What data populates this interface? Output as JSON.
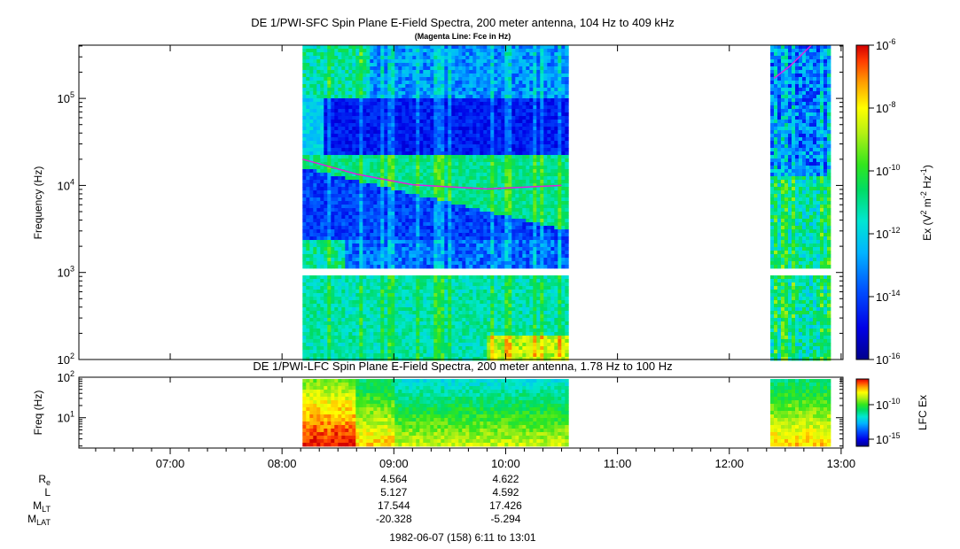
{
  "chart_data": [
    {
      "type": "heatmap",
      "title": "DE 1/PWI-SFC  Spin Plane E-Field Spectra, 200 meter antenna, 104 Hz to 409 kHz",
      "subtitle": "(Magenta Line: Fce in Hz)",
      "ylabel": "Frequency (Hz)",
      "yscale": "log",
      "ylim": [
        100,
        409000
      ],
      "yticks": [
        {
          "base": "10",
          "exp": "2"
        },
        {
          "base": "10",
          "exp": "3"
        },
        {
          "base": "10",
          "exp": "4"
        },
        {
          "base": "10",
          "exp": "5"
        }
      ],
      "xlim": [
        "06:11",
        "13:01"
      ],
      "data_intervals": [
        [
          "08:11",
          "10:32"
        ],
        [
          "12:22",
          "12:53"
        ]
      ],
      "colorbar": {
        "label_parts": [
          "Ex (V",
          "2",
          " m",
          "-2",
          " Hz",
          "-1",
          ")"
        ],
        "scale": "log",
        "range": [
          1e-16,
          1e-06
        ],
        "ticks": [
          {
            "base": "10",
            "exp": "-6"
          },
          {
            "base": "10",
            "exp": "-8"
          },
          {
            "base": "10",
            "exp": "-10"
          },
          {
            "base": "10",
            "exp": "-12"
          },
          {
            "base": "10",
            "exp": "-14"
          },
          {
            "base": "10",
            "exp": "-16"
          }
        ]
      },
      "fce_line": {
        "color": "#e020e0",
        "segments": [
          {
            "x": [
              "08:11",
              "08:40",
              "09:10",
              "09:50",
              "10:30"
            ],
            "y": [
              20000,
              13500,
              10200,
              9100,
              10000
            ]
          },
          {
            "x": [
              "12:24",
              "12:33",
              "12:44"
            ],
            "y": [
              170000,
              240000,
              409000
            ]
          }
        ]
      }
    },
    {
      "type": "heatmap",
      "title": "DE 1/PWI-LFC  Spin Plane E-Field Spectra, 200 meter antenna, 1.78 Hz to 100 Hz",
      "ylabel": "Freq (Hz)",
      "yscale": "log",
      "ylim": [
        1.78,
        100
      ],
      "yticks": [
        {
          "base": "10",
          "exp": "1"
        },
        {
          "base": "10",
          "exp": "2"
        }
      ],
      "data_intervals": [
        [
          "08:11",
          "10:32"
        ],
        [
          "12:22",
          "12:53"
        ]
      ],
      "colorbar": {
        "label": "LFC Ex",
        "scale": "log",
        "ticks": [
          {
            "base": "10",
            "exp": "-10"
          },
          {
            "base": "10",
            "exp": "-15"
          }
        ]
      }
    }
  ],
  "time_axis": {
    "ticks": [
      "07:00",
      "08:00",
      "09:00",
      "10:00",
      "11:00",
      "12:00",
      "13:00"
    ]
  },
  "ephemeris": {
    "rows": [
      {
        "main": "R",
        "sub": "e",
        "values": [
          "4.564",
          "4.622"
        ]
      },
      {
        "main": "L",
        "sub": "",
        "values": [
          "5.127",
          "4.592"
        ]
      },
      {
        "main": "M",
        "sub": "LT",
        "values": [
          "17.544",
          "17.426"
        ]
      },
      {
        "main": "M",
        "sub": "LAT",
        "values": [
          "-20.328",
          "-5.294"
        ]
      }
    ],
    "times": [
      "09:00",
      "10:00"
    ]
  },
  "footer": "1982-06-07 (158) 6:11 to 13:01"
}
